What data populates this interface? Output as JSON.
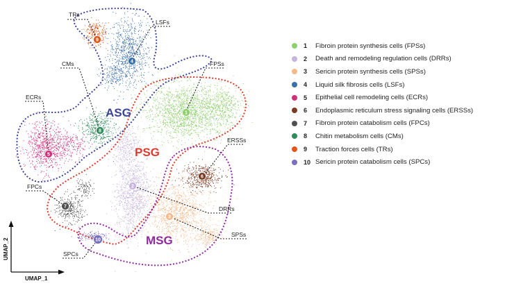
{
  "regions": {
    "asg": {
      "label": "ASG",
      "color": "#3f4596"
    },
    "psg": {
      "label": "PSG",
      "color": "#e03a2e"
    },
    "msg": {
      "label": "MSG",
      "color": "#8e2ba0"
    }
  },
  "axes": {
    "x_label": "UMAP_1",
    "y_label": "UMAP_2"
  },
  "clusters": [
    {
      "id": "1",
      "color": "#8fcf6e",
      "label": "Fibroin protein synthesis cells (FPSs)",
      "callout": "FPSs"
    },
    {
      "id": "2",
      "color": "#c5b4dd",
      "label": "Death and remodeling regulation cells (DRRs)",
      "callout": "DRRs"
    },
    {
      "id": "3",
      "color": "#f5b98a",
      "label": "Sericin protein synthesis cells (SPSs)",
      "callout": "SPSs"
    },
    {
      "id": "4",
      "color": "#3a6fa8",
      "label": "Liquid silk fibrosis cells (LSFs)",
      "callout": "LSFs"
    },
    {
      "id": "5",
      "color": "#d0307a",
      "label": "Epithelial cell remodeling cells (ECRs)",
      "callout": "ECRs"
    },
    {
      "id": "6",
      "color": "#7b3a22",
      "label": "Endoplasmic reticulum stress signaling cells (ERSSs)",
      "callout": "ERSSs"
    },
    {
      "id": "7",
      "color": "#505050",
      "label": "Fibroin protein catabolism cells (FPCs)",
      "callout": "FPCs"
    },
    {
      "id": "8",
      "color": "#2f8c5c",
      "label": "Chitin metabolism cells (CMs)",
      "callout": "CMs"
    },
    {
      "id": "9",
      "color": "#e0561b",
      "label": "Traction forces cells (TRs)",
      "callout": "TRs"
    },
    {
      "id": "10",
      "color": "#7b70bd",
      "label": "Sericin protein catabolism cells (SPCs)",
      "callout": "SPCs"
    }
  ]
}
